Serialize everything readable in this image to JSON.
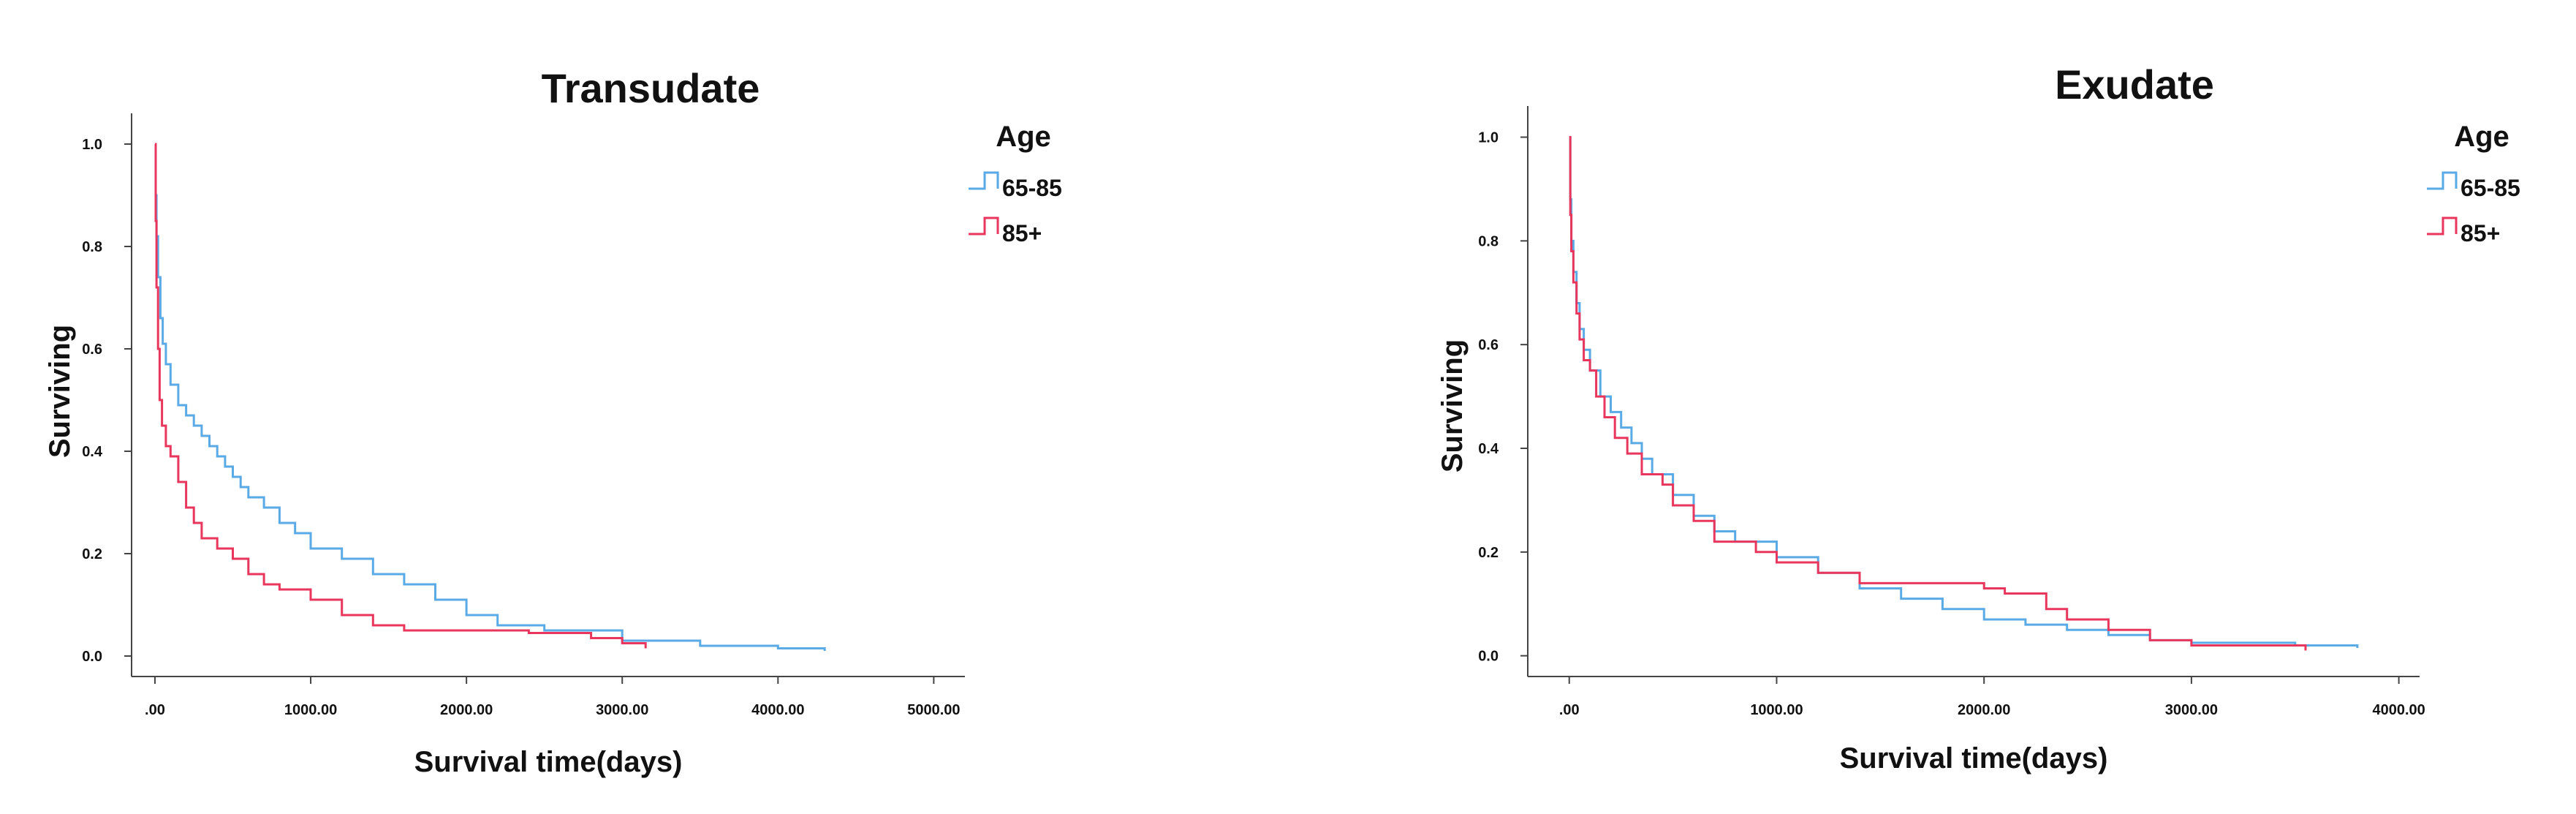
{
  "chart_data": [
    {
      "type": "line",
      "step": true,
      "title": "Transudate",
      "xlabel": "Survival time(days)",
      "ylabel": "Surviving",
      "xlim": [
        -150,
        5200
      ],
      "ylim": [
        -0.04,
        1.06
      ],
      "xticks": [
        0,
        1000,
        2000,
        3000,
        4000,
        5000
      ],
      "xtick_labels": [
        ".00",
        "1000.00",
        "2000.00",
        "3000.00",
        "4000.00",
        "5000.00"
      ],
      "yticks": [
        0,
        0.2,
        0.4,
        0.6,
        0.8,
        1.0
      ],
      "ytick_labels": [
        "0.0",
        "0.2",
        "0.4",
        "0.6",
        "0.8",
        "1.0"
      ],
      "grid": false,
      "legend": {
        "title": "Age",
        "position": "right"
      },
      "series": [
        {
          "name": "65-85",
          "color": "#5aaae6",
          "points": [
            [
              0,
              1.0
            ],
            [
              5,
              0.9
            ],
            [
              10,
              0.82
            ],
            [
              20,
              0.74
            ],
            [
              35,
              0.66
            ],
            [
              50,
              0.61
            ],
            [
              70,
              0.57
            ],
            [
              100,
              0.53
            ],
            [
              150,
              0.49
            ],
            [
              200,
              0.47
            ],
            [
              250,
              0.45
            ],
            [
              300,
              0.43
            ],
            [
              350,
              0.41
            ],
            [
              400,
              0.39
            ],
            [
              450,
              0.37
            ],
            [
              500,
              0.35
            ],
            [
              550,
              0.33
            ],
            [
              600,
              0.31
            ],
            [
              700,
              0.29
            ],
            [
              800,
              0.26
            ],
            [
              900,
              0.24
            ],
            [
              1000,
              0.21
            ],
            [
              1200,
              0.19
            ],
            [
              1400,
              0.16
            ],
            [
              1600,
              0.14
            ],
            [
              1800,
              0.11
            ],
            [
              2000,
              0.08
            ],
            [
              2200,
              0.06
            ],
            [
              2500,
              0.05
            ],
            [
              3000,
              0.03
            ],
            [
              3500,
              0.02
            ],
            [
              4000,
              0.015
            ],
            [
              4300,
              0.01
            ]
          ]
        },
        {
          "name": "85+",
          "color": "#e8365c",
          "points": [
            [
              0,
              1.0
            ],
            [
              5,
              0.85
            ],
            [
              10,
              0.72
            ],
            [
              20,
              0.6
            ],
            [
              30,
              0.5
            ],
            [
              45,
              0.45
            ],
            [
              70,
              0.41
            ],
            [
              100,
              0.39
            ],
            [
              150,
              0.34
            ],
            [
              200,
              0.29
            ],
            [
              250,
              0.26
            ],
            [
              300,
              0.23
            ],
            [
              400,
              0.21
            ],
            [
              500,
              0.19
            ],
            [
              600,
              0.16
            ],
            [
              700,
              0.14
            ],
            [
              800,
              0.13
            ],
            [
              1000,
              0.11
            ],
            [
              1200,
              0.08
            ],
            [
              1400,
              0.06
            ],
            [
              1600,
              0.05
            ],
            [
              2000,
              0.05
            ],
            [
              2400,
              0.045
            ],
            [
              2800,
              0.035
            ],
            [
              3000,
              0.025
            ],
            [
              3150,
              0.015
            ]
          ]
        }
      ]
    },
    {
      "type": "line",
      "step": true,
      "title": "Exudate",
      "xlabel": "Survival time(days)",
      "ylabel": "Surviving",
      "xlim": [
        -200,
        4100
      ],
      "ylim": [
        -0.04,
        1.06
      ],
      "xticks": [
        0,
        1000,
        2000,
        3000,
        4000
      ],
      "xtick_labels": [
        ".00",
        "1000.00",
        "2000.00",
        "3000.00",
        "4000.00"
      ],
      "yticks": [
        0,
        0.2,
        0.4,
        0.6,
        0.8,
        1.0
      ],
      "ytick_labels": [
        "0.0",
        "0.2",
        "0.4",
        "0.6",
        "0.8",
        "1.0"
      ],
      "grid": false,
      "legend": {
        "title": "Age",
        "position": "right"
      },
      "series": [
        {
          "name": "65-85",
          "color": "#5aaae6",
          "points": [
            [
              0,
              1.0
            ],
            [
              5,
              0.88
            ],
            [
              10,
              0.8
            ],
            [
              20,
              0.74
            ],
            [
              35,
              0.68
            ],
            [
              50,
              0.63
            ],
            [
              70,
              0.59
            ],
            [
              100,
              0.55
            ],
            [
              150,
              0.5
            ],
            [
              200,
              0.47
            ],
            [
              250,
              0.44
            ],
            [
              300,
              0.41
            ],
            [
              350,
              0.38
            ],
            [
              400,
              0.35
            ],
            [
              500,
              0.31
            ],
            [
              600,
              0.27
            ],
            [
              700,
              0.24
            ],
            [
              800,
              0.22
            ],
            [
              1000,
              0.19
            ],
            [
              1200,
              0.16
            ],
            [
              1400,
              0.13
            ],
            [
              1600,
              0.11
            ],
            [
              1800,
              0.09
            ],
            [
              2000,
              0.07
            ],
            [
              2200,
              0.06
            ],
            [
              2400,
              0.05
            ],
            [
              2600,
              0.04
            ],
            [
              2800,
              0.03
            ],
            [
              3000,
              0.025
            ],
            [
              3500,
              0.02
            ],
            [
              3800,
              0.015
            ]
          ]
        },
        {
          "name": "85+",
          "color": "#e8365c",
          "points": [
            [
              0,
              1.0
            ],
            [
              5,
              0.85
            ],
            [
              10,
              0.78
            ],
            [
              20,
              0.72
            ],
            [
              35,
              0.66
            ],
            [
              50,
              0.61
            ],
            [
              70,
              0.57
            ],
            [
              100,
              0.55
            ],
            [
              130,
              0.5
            ],
            [
              170,
              0.46
            ],
            [
              220,
              0.42
            ],
            [
              280,
              0.39
            ],
            [
              350,
              0.35
            ],
            [
              450,
              0.33
            ],
            [
              500,
              0.29
            ],
            [
              600,
              0.26
            ],
            [
              700,
              0.22
            ],
            [
              900,
              0.2
            ],
            [
              1000,
              0.18
            ],
            [
              1200,
              0.16
            ],
            [
              1400,
              0.14
            ],
            [
              1600,
              0.14
            ],
            [
              2000,
              0.13
            ],
            [
              2100,
              0.12
            ],
            [
              2300,
              0.09
            ],
            [
              2400,
              0.07
            ],
            [
              2600,
              0.05
            ],
            [
              2800,
              0.03
            ],
            [
              3000,
              0.02
            ],
            [
              3500,
              0.02
            ],
            [
              3550,
              0.01
            ]
          ]
        }
      ]
    }
  ]
}
